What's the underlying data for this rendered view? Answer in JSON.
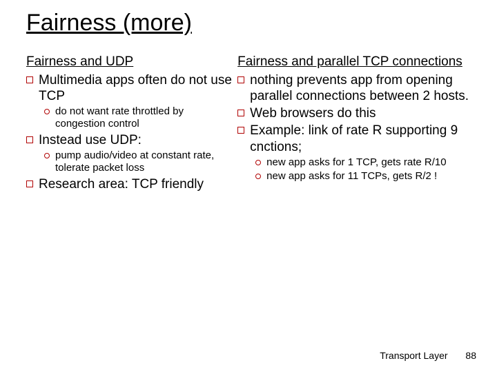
{
  "title": "Fairness (more)",
  "left": {
    "subhead": "Fairness and UDP",
    "b1": "Multimedia apps often do not use TCP",
    "b1a": "do not want rate throttled by congestion control",
    "b2": "Instead use UDP:",
    "b2a": "pump audio/video at constant rate, tolerate packet loss",
    "b3": "Research area: TCP friendly"
  },
  "right": {
    "subhead": "Fairness and parallel TCP connections",
    "b1": "nothing prevents app from opening parallel connections between 2 hosts.",
    "b2": "Web browsers do this",
    "b3": "Example: link of rate R supporting 9 cnctions;",
    "b3a": "new app asks for 1 TCP, gets rate R/10",
    "b3b": "new app asks for 11 TCPs, gets R/2 !"
  },
  "footer": {
    "label": "Transport Layer",
    "page": "88"
  },
  "colors": {
    "bullet_border": "#b00000",
    "text": "#000000",
    "bg": "#ffffff"
  }
}
